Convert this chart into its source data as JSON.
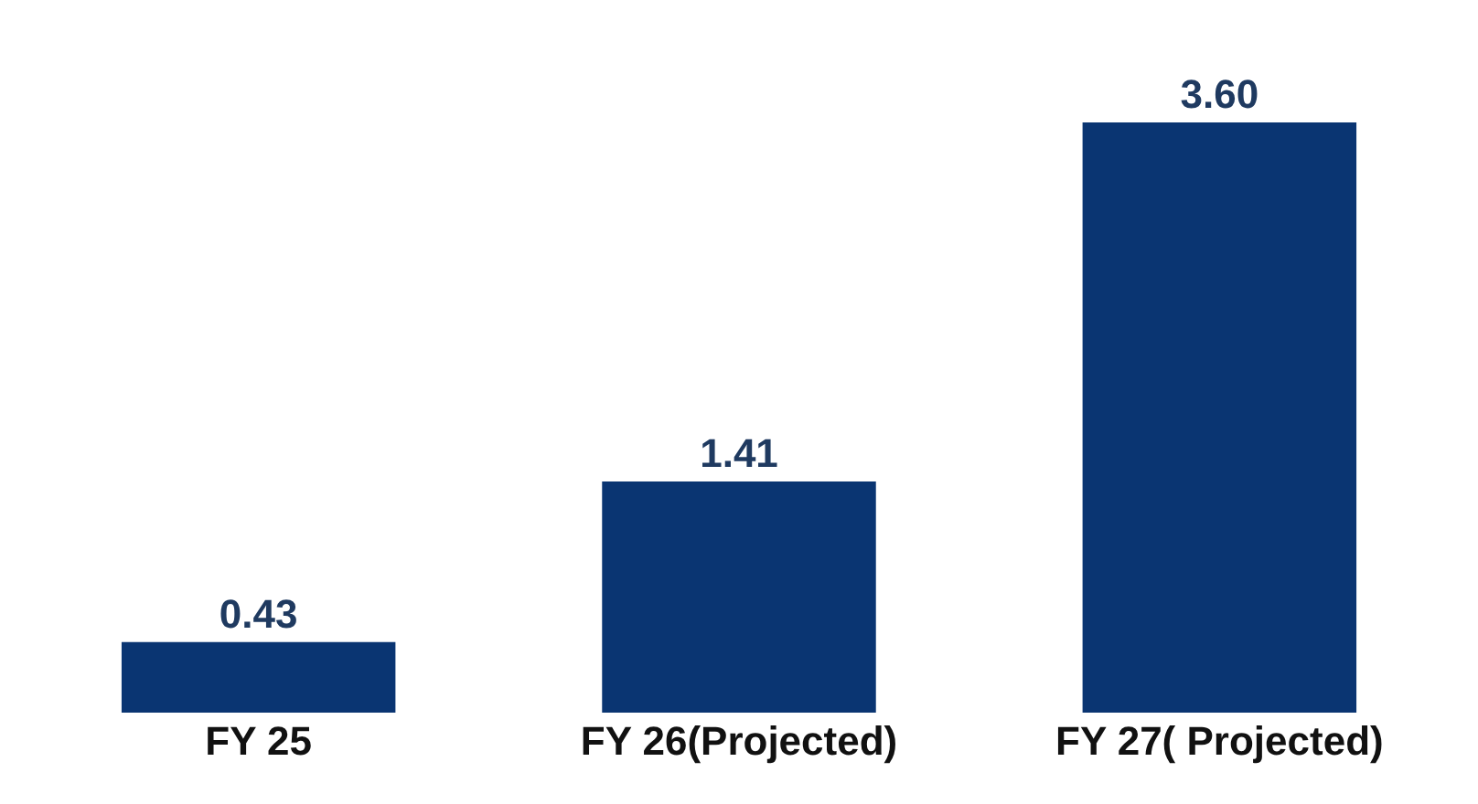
{
  "chart_data": {
    "type": "bar",
    "categories": [
      "FY 25",
      "FY 26(Projected)",
      "FY 27( Projected)"
    ],
    "values": [
      0.43,
      1.41,
      3.6
    ],
    "value_labels": [
      "0.43",
      "1.41",
      "3.60"
    ],
    "color": "#0a3572"
  }
}
